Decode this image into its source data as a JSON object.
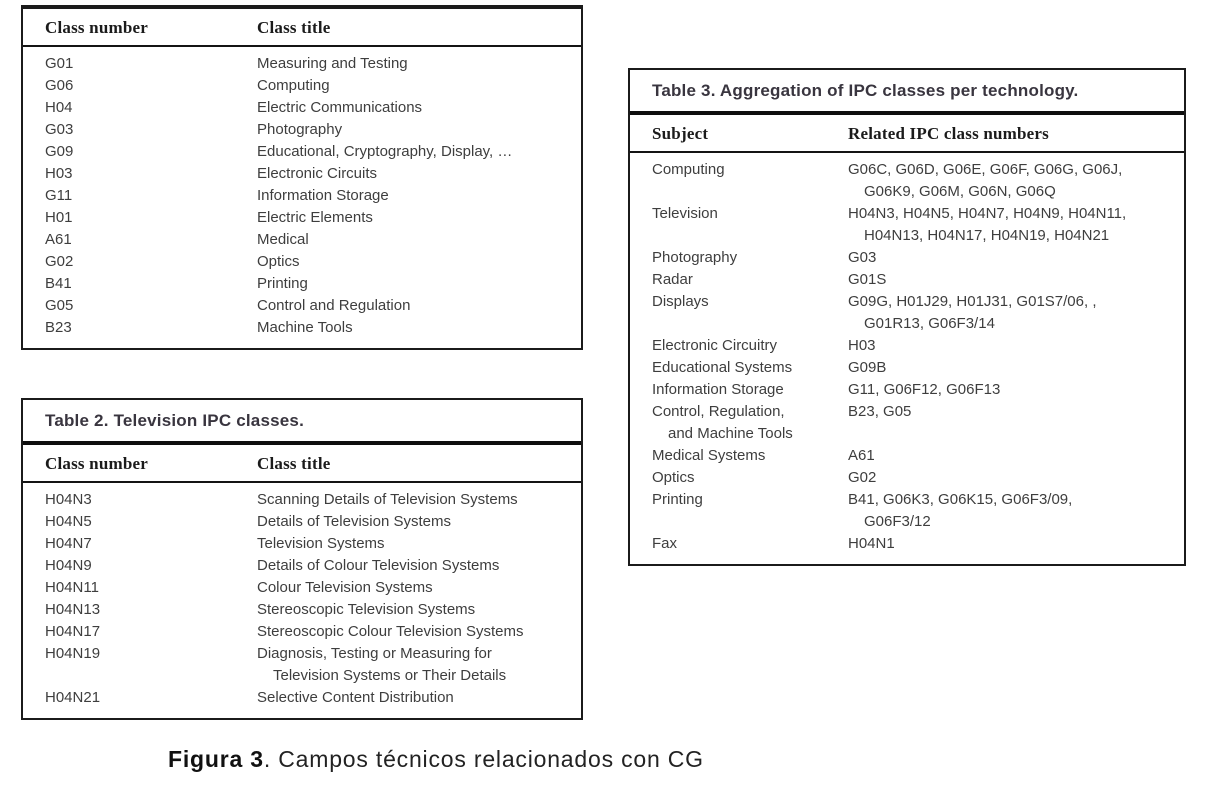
{
  "caption": {
    "label_bold": "Figura 3",
    "rest": ". Campos técnicos relacionados con CG"
  },
  "colors": {
    "background": "#ffffff",
    "border": "#1b1b1b",
    "thick_rule": "#0e0e0e",
    "title_text": "#39353f",
    "header_text": "#1b1b1b",
    "body_text": "#3e3e3e"
  },
  "table1": {
    "headers": [
      "Class number",
      "Class title"
    ],
    "rows": [
      [
        [
          "G01"
        ],
        [
          "Measuring and Testing"
        ]
      ],
      [
        [
          "G06"
        ],
        [
          "Computing"
        ]
      ],
      [
        [
          "H04"
        ],
        [
          "Electric Communications"
        ]
      ],
      [
        [
          "G03"
        ],
        [
          "Photography"
        ]
      ],
      [
        [
          "G09"
        ],
        [
          "Educational, Cryptography, Display, …"
        ]
      ],
      [
        [
          "H03"
        ],
        [
          "Electronic Circuits"
        ]
      ],
      [
        [
          "G11"
        ],
        [
          "Information Storage"
        ]
      ],
      [
        [
          "H01"
        ],
        [
          "Electric Elements"
        ]
      ],
      [
        [
          "A61"
        ],
        [
          "Medical"
        ]
      ],
      [
        [
          "G02"
        ],
        [
          "Optics"
        ]
      ],
      [
        [
          "B41"
        ],
        [
          "Printing"
        ]
      ],
      [
        [
          "G05"
        ],
        [
          "Control and Regulation"
        ]
      ],
      [
        [
          "B23"
        ],
        [
          "Machine Tools"
        ]
      ]
    ]
  },
  "table2": {
    "title": "Table 2. Television IPC classes.",
    "headers": [
      "Class number",
      "Class title"
    ],
    "rows": [
      [
        [
          "H04N3"
        ],
        [
          "Scanning Details of Television Systems"
        ]
      ],
      [
        [
          "H04N5"
        ],
        [
          "Details of Television Systems"
        ]
      ],
      [
        [
          "H04N7"
        ],
        [
          "Television Systems"
        ]
      ],
      [
        [
          "H04N9"
        ],
        [
          "Details of Colour Television Systems"
        ]
      ],
      [
        [
          "H04N11"
        ],
        [
          "Colour Television Systems"
        ]
      ],
      [
        [
          "H04N13"
        ],
        [
          "Stereoscopic Television Systems"
        ]
      ],
      [
        [
          "H04N17"
        ],
        [
          "Stereoscopic Colour Television Systems"
        ]
      ],
      [
        [
          "H04N19"
        ],
        [
          "Diagnosis, Testing or Measuring for",
          "Television Systems or Their Details"
        ]
      ],
      [
        [
          "H04N21"
        ],
        [
          "Selective Content Distribution"
        ]
      ]
    ]
  },
  "table3": {
    "title": "Table 3. Aggregation of IPC classes per technology.",
    "headers": [
      "Subject",
      "Related IPC class numbers"
    ],
    "rows": [
      [
        [
          "Computing"
        ],
        [
          "G06C, G06D, G06E, G06F, G06G, G06J,",
          "G06K9, G06M, G06N, G06Q"
        ]
      ],
      [
        [
          "Television"
        ],
        [
          "H04N3, H04N5, H04N7, H04N9, H04N11,",
          "H04N13, H04N17, H04N19, H04N21"
        ]
      ],
      [
        [
          "Photography"
        ],
        [
          "G03"
        ]
      ],
      [
        [
          "Radar"
        ],
        [
          "G01S"
        ]
      ],
      [
        [
          "Displays"
        ],
        [
          "G09G, H01J29, H01J31, G01S7/06, ,",
          "G01R13, G06F3/14"
        ]
      ],
      [
        [
          "Electronic Circuitry"
        ],
        [
          "H03"
        ]
      ],
      [
        [
          "Educational Systems"
        ],
        [
          "G09B"
        ]
      ],
      [
        [
          "Information Storage"
        ],
        [
          "G11, G06F12, G06F13"
        ]
      ],
      [
        [
          "Control, Regulation,",
          "and Machine Tools"
        ],
        [
          "B23, G05"
        ]
      ],
      [
        [
          "Medical Systems"
        ],
        [
          "A61"
        ]
      ],
      [
        [
          "Optics"
        ],
        [
          "G02"
        ]
      ],
      [
        [
          "Printing"
        ],
        [
          "B41, G06K3, G06K15, G06F3/09,",
          "G06F3/12"
        ]
      ],
      [
        [
          "Fax"
        ],
        [
          "H04N1"
        ]
      ]
    ]
  }
}
